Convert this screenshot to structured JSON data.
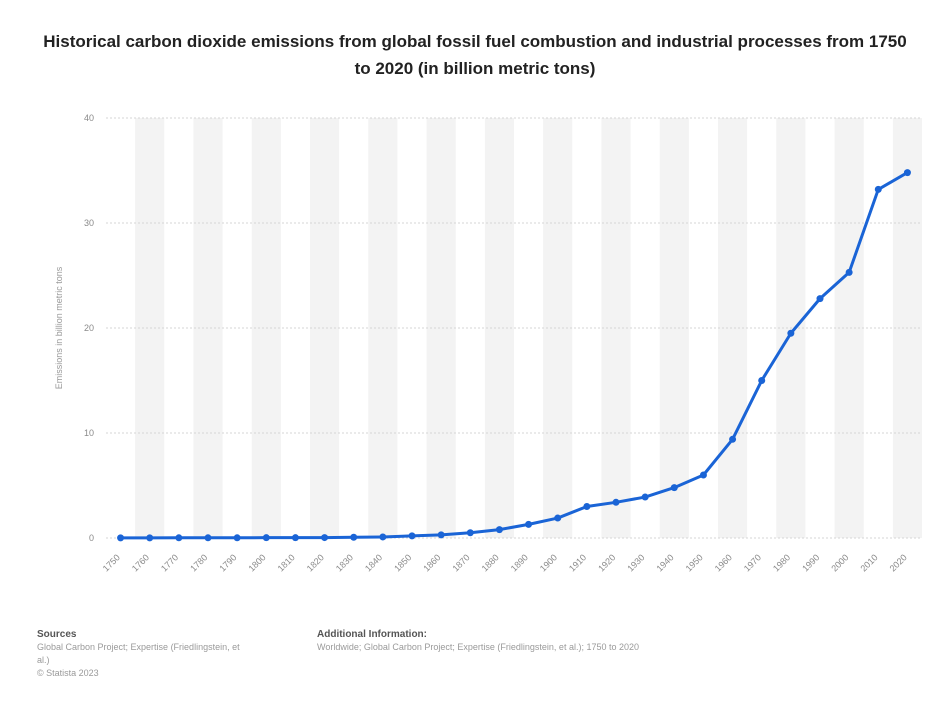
{
  "chart_data": {
    "type": "line",
    "title": "Historical carbon dioxide emissions from global fossil fuel combustion and industrial processes from 1750 to 2020 (in billion metric tons)",
    "xlabel": "",
    "ylabel": "Emissions in billion metric tons",
    "ylim": [
      0,
      40
    ],
    "yticks": [
      0,
      10,
      20,
      30,
      40
    ],
    "grid": true,
    "legend": "none",
    "line_color": "#1a64d6",
    "band_color": "#f3f3f3",
    "x": [
      "1750",
      "1760",
      "1770",
      "1780",
      "1790",
      "1800",
      "1810",
      "1820",
      "1830",
      "1840",
      "1850",
      "1860",
      "1870",
      "1880",
      "1890",
      "1900",
      "1910",
      "1920",
      "1930",
      "1940",
      "1950",
      "1960",
      "1970",
      "1980",
      "1990",
      "2000",
      "2010",
      "2020"
    ],
    "values": [
      0.01,
      0.01,
      0.02,
      0.02,
      0.02,
      0.03,
      0.03,
      0.04,
      0.07,
      0.1,
      0.2,
      0.3,
      0.5,
      0.8,
      1.3,
      1.9,
      3.0,
      3.4,
      3.9,
      4.8,
      6.0,
      9.4,
      15.0,
      19.5,
      22.8,
      25.3,
      33.2,
      34.8
    ]
  },
  "footer": {
    "sources_heading": "Sources",
    "sources_line1": "Global Carbon Project; Expertise (Friedlingstein, et",
    "sources_line2": "al.)",
    "sources_line3": "© Statista 2023",
    "additional_heading": "Additional Information:",
    "additional_text": "Worldwide; Global Carbon Project; Expertise (Friedlingstein, et al.); 1750 to 2020"
  }
}
